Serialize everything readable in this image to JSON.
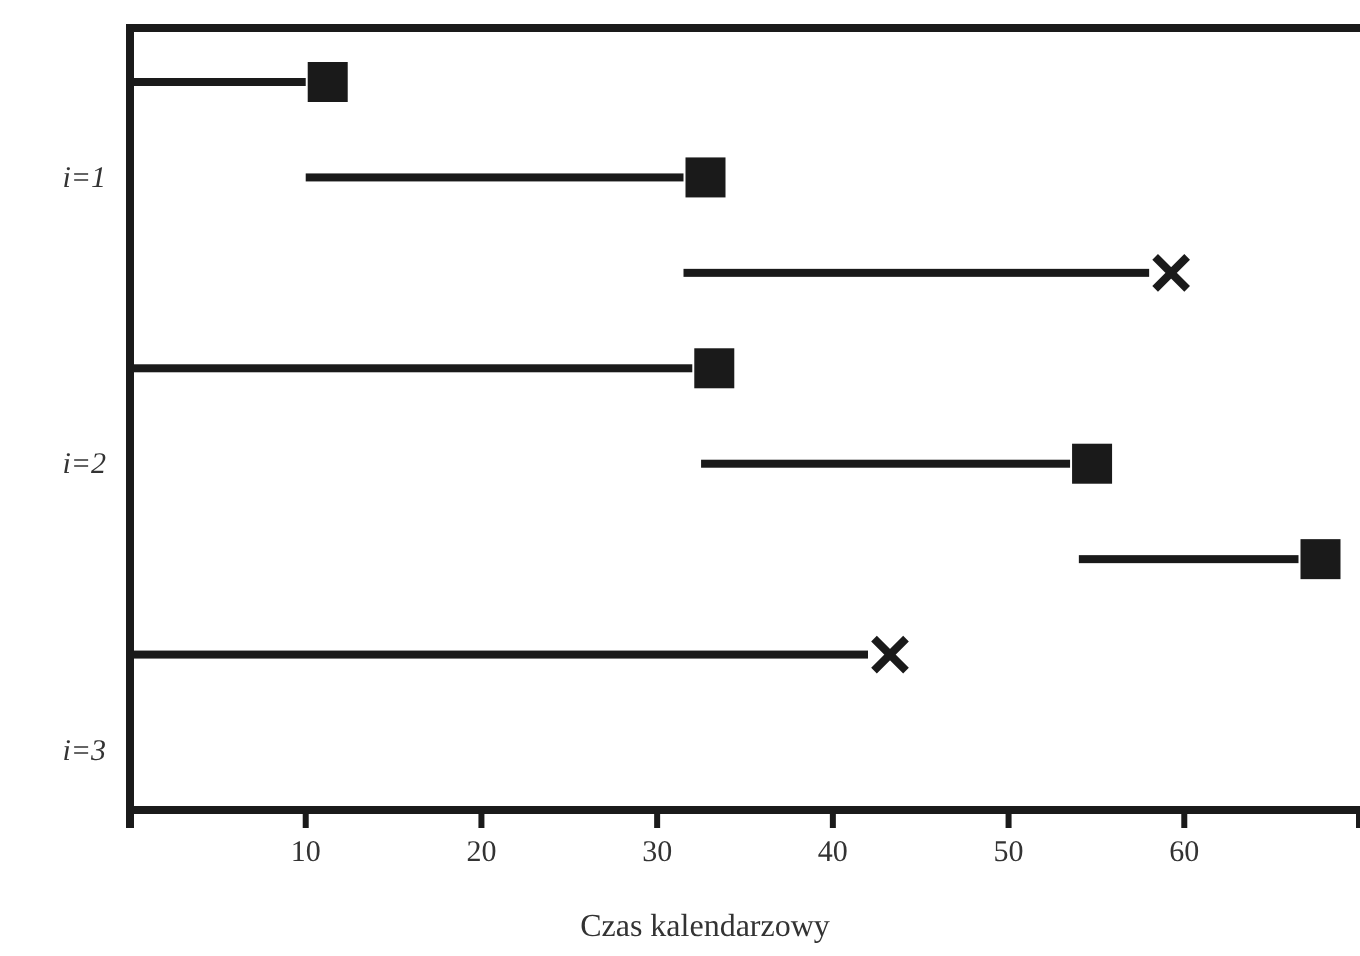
{
  "chart_data": {
    "type": "bar",
    "orientation": "horizontal",
    "xlabel": "Czas kalendarzowy",
    "categories": [
      null,
      "i=1",
      null,
      null,
      "i=2",
      null,
      null,
      "i=3"
    ],
    "xlim": [
      0,
      70
    ],
    "xticks": [
      10,
      20,
      30,
      40,
      50,
      60
    ],
    "grid": false,
    "series": [
      {
        "color": "#1a1a1a",
        "marker": "square",
        "base": [
          0,
          10,
          null,
          0,
          32.5,
          54,
          null,
          null
        ],
        "values": [
          10,
          21.5,
          null,
          32,
          21,
          12.5,
          null,
          null
        ]
      },
      {
        "color": "#1a1a1a",
        "marker": "cross",
        "base": [
          null,
          null,
          31.5,
          null,
          null,
          null,
          0,
          null
        ],
        "values": [
          null,
          null,
          26.5,
          null,
          null,
          null,
          42,
          null
        ]
      }
    ]
  }
}
